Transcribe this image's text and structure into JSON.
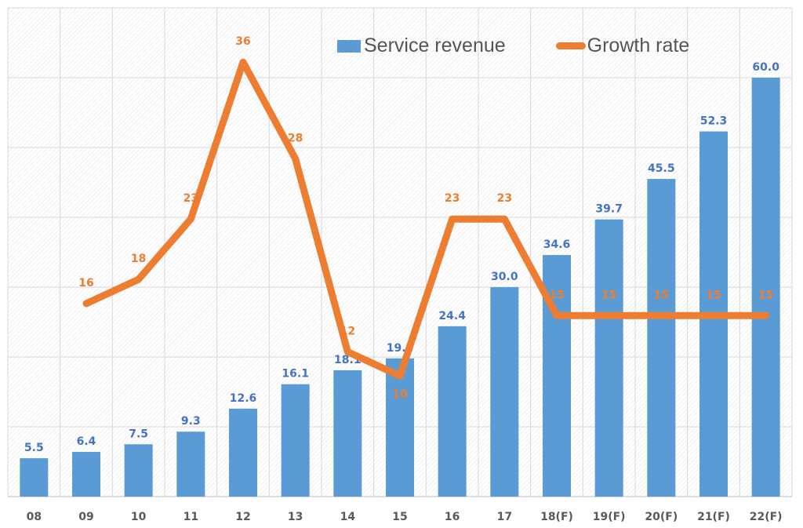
{
  "chart_data": {
    "type": "bar+line",
    "categories": [
      "08",
      "09",
      "10",
      "11",
      "12",
      "13",
      "14",
      "15",
      "16",
      "17",
      "18(F)",
      "19(F)",
      "20(F)",
      "21(F)",
      "22(F)"
    ],
    "series": [
      {
        "name": "Service revenue",
        "type": "bar",
        "axis": "primary",
        "color": "#5b9bd5",
        "values": [
          5.5,
          6.4,
          7.5,
          9.3,
          12.6,
          16.1,
          18.1,
          19.8,
          24.4,
          30.0,
          34.6,
          39.7,
          45.5,
          52.3,
          60.0
        ],
        "labels": [
          "5.5",
          "6.4",
          "7.5",
          "9.3",
          "12.6",
          "16.1",
          "18.1",
          "19.8",
          "24.4",
          "30.0",
          "34.6",
          "39.7",
          "45.5",
          "52.3",
          "60.0"
        ]
      },
      {
        "name": "Growth rate",
        "type": "line",
        "axis": "secondary",
        "color": "#ed7d31",
        "values": [
          null,
          16,
          18,
          23,
          36,
          28,
          12,
          10,
          23,
          23,
          15,
          15,
          15,
          15,
          15
        ],
        "labels": [
          "",
          "16",
          "18",
          "23",
          "36",
          "28",
          "12",
          "10",
          "23",
          "23",
          "15",
          "15",
          "15",
          "15",
          "15"
        ]
      }
    ],
    "ylim": [
      0,
      70
    ],
    "y2lim": [
      0,
      40.5
    ],
    "grid": true,
    "legend": "top-center",
    "label_color_bar": "#4472c4",
    "label_color_line": "#ed7d31"
  }
}
